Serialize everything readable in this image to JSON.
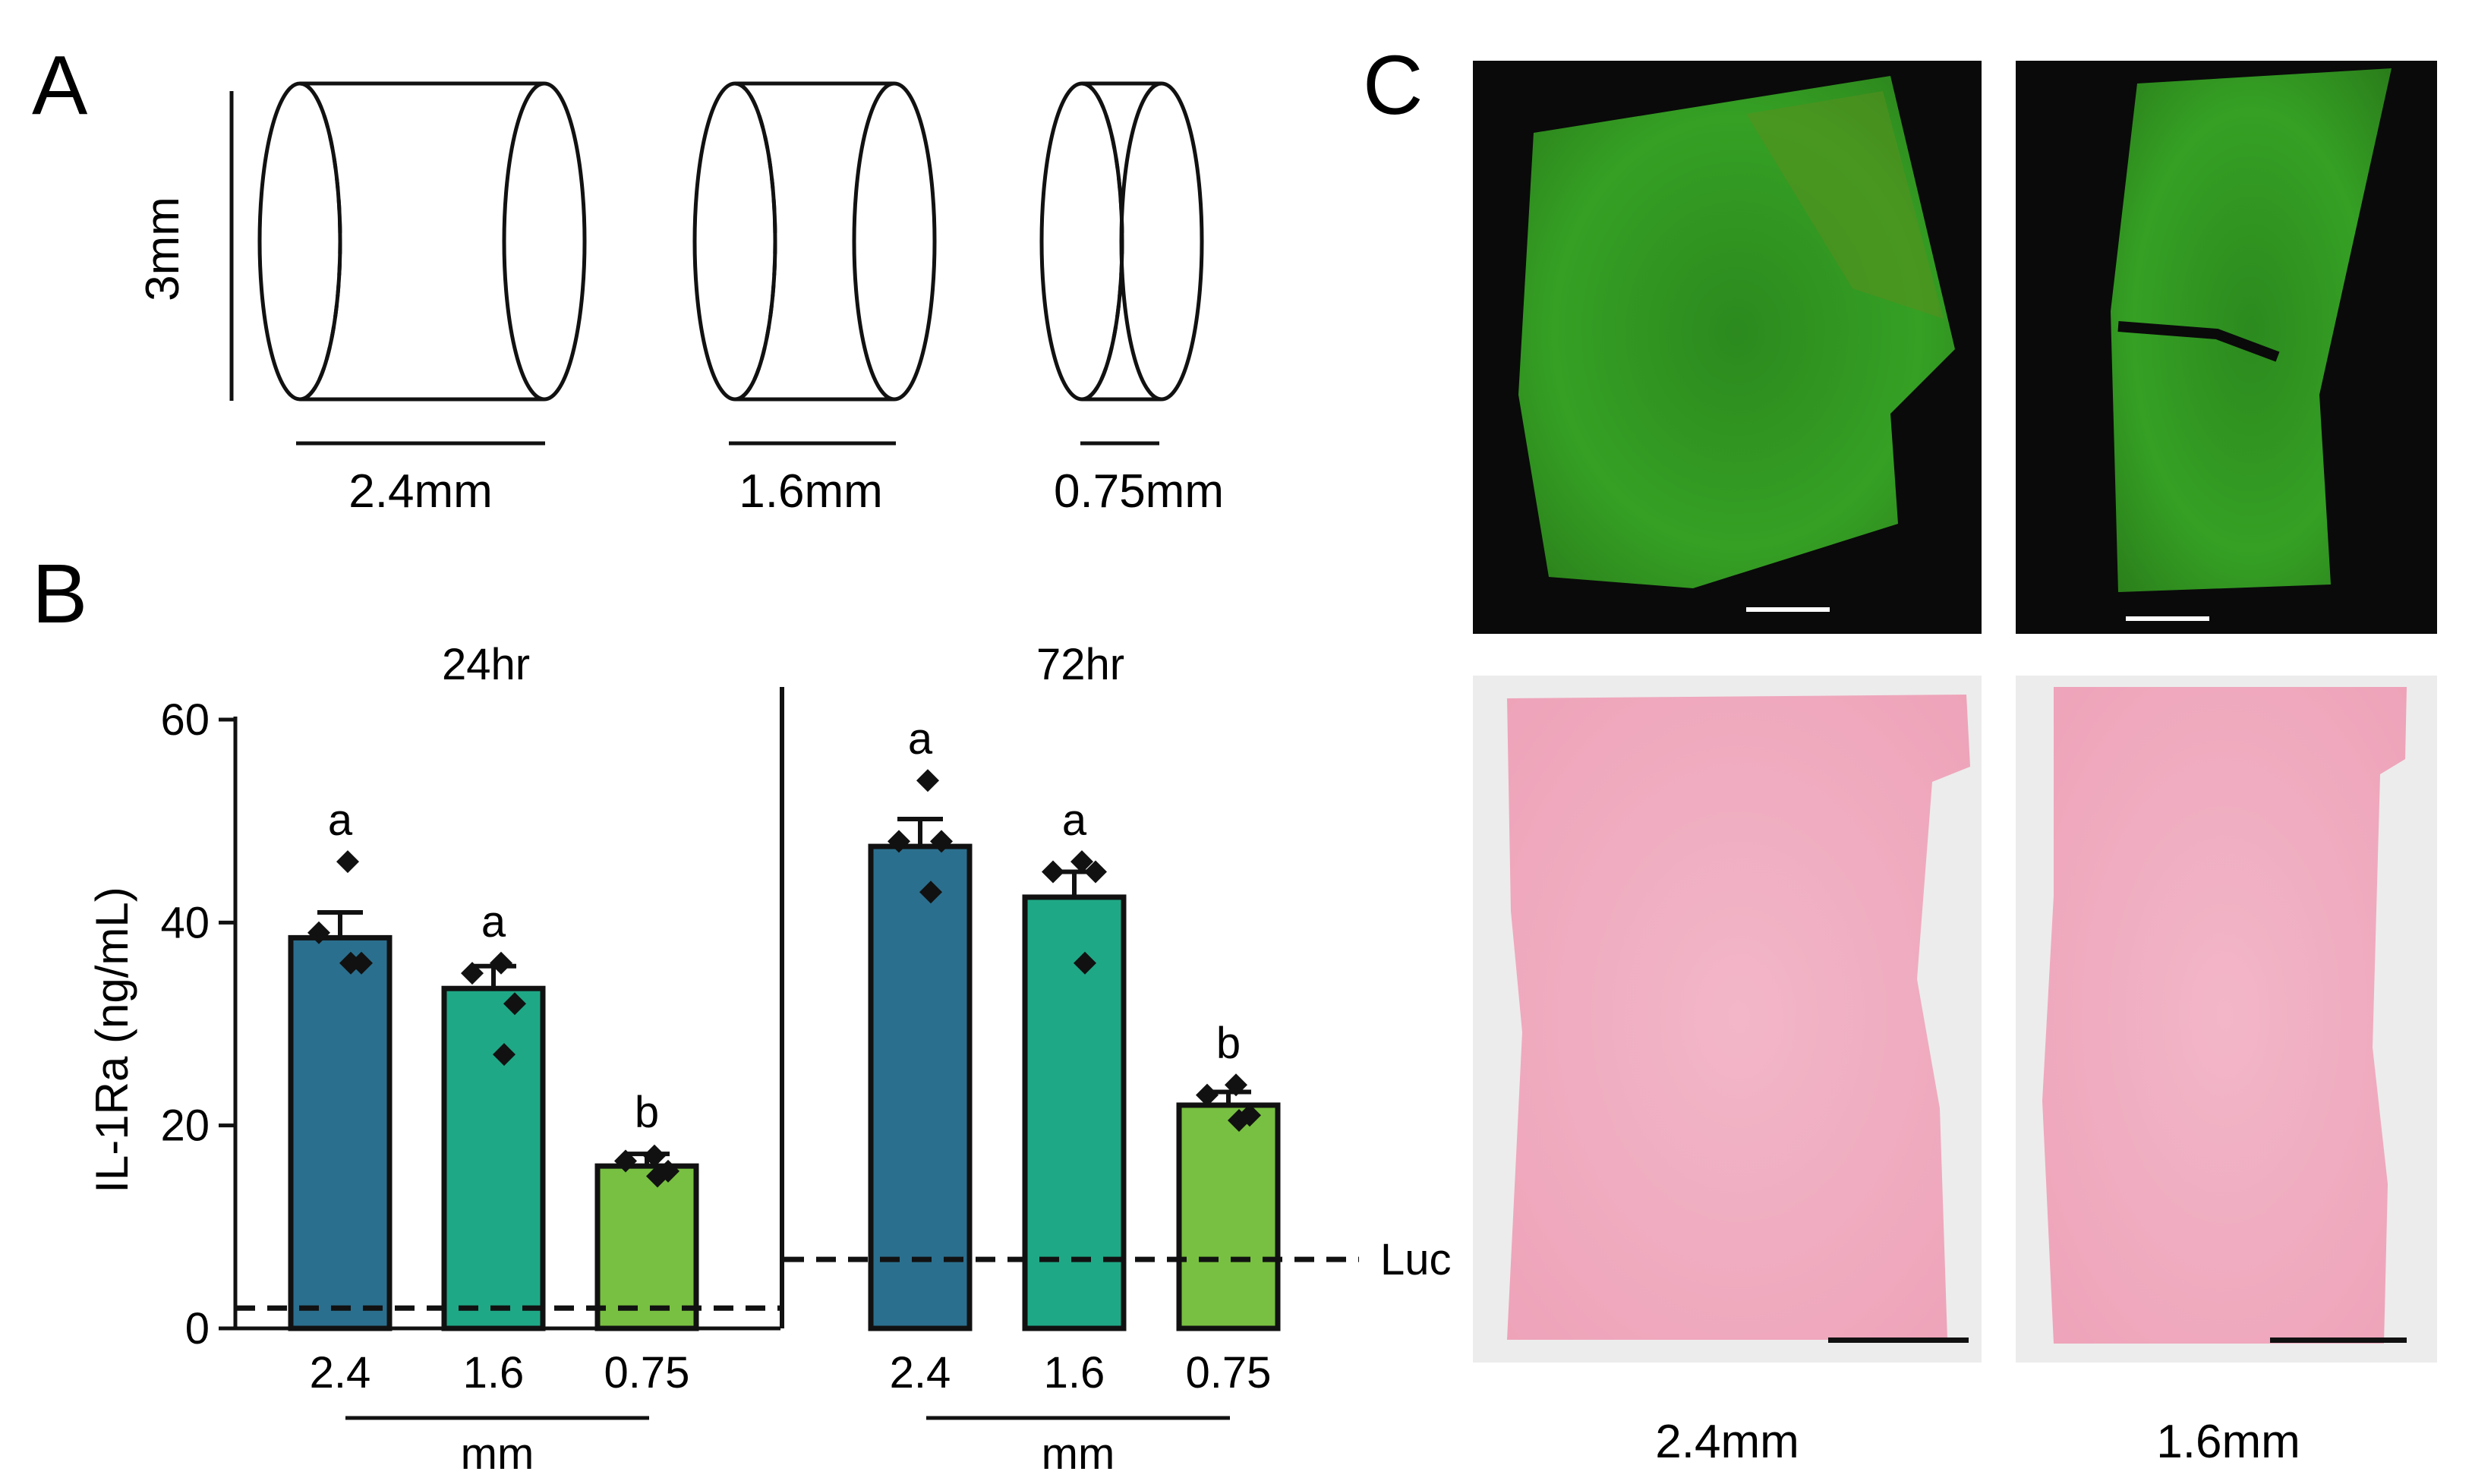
{
  "panels": {
    "a": {
      "letter": "A",
      "height_label": "3mm",
      "cylinders": [
        {
          "label": "2.4mm"
        },
        {
          "label": "1.6mm"
        },
        {
          "label": "0.75mm"
        }
      ]
    },
    "b": {
      "letter": "B"
    },
    "c": {
      "letter": "C",
      "column_labels": [
        "2.4mm",
        "1.6mm"
      ]
    }
  },
  "chart_data": {
    "type": "bar",
    "ylabel": "IL-1Ra (ng/mL)",
    "ylim": [
      0,
      60
    ],
    "yticks": [
      0,
      20,
      40,
      60
    ],
    "grid": false,
    "groups": [
      {
        "title": "24hr",
        "categories": [
          "2.4",
          "1.6",
          "0.75"
        ],
        "unit_label": "mm",
        "values": [
          38.5,
          33.5,
          16
        ],
        "errors": [
          2.5,
          2.2,
          1.2
        ],
        "letters": [
          "a",
          "a",
          "b"
        ],
        "points": [
          [
            46,
            39,
            36,
            36
          ],
          [
            36,
            35,
            32,
            27
          ],
          [
            17,
            16.5,
            15.5,
            15
          ]
        ],
        "baseline": 2
      },
      {
        "title": "72hr",
        "categories": [
          "2.4",
          "1.6",
          "0.75"
        ],
        "unit_label": "mm",
        "values": [
          47.5,
          42.5,
          22
        ],
        "errors": [
          2.7,
          2.5,
          1.3
        ],
        "letters": [
          "a",
          "a",
          "b"
        ],
        "points": [
          [
            54,
            48,
            48,
            43
          ],
          [
            46,
            45,
            45,
            36
          ],
          [
            24,
            23,
            21,
            20.5
          ]
        ],
        "baseline": 6.8,
        "baseline_label": "Luc"
      }
    ],
    "bar_colors": [
      "#2b6f8e",
      "#1fa886",
      "#78c041"
    ]
  }
}
